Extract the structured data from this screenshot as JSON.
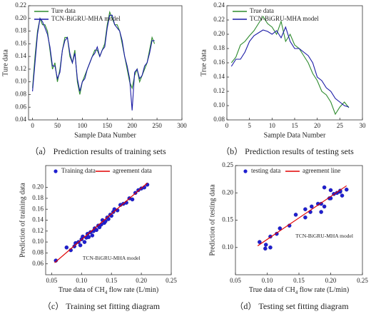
{
  "chart_data": [
    {
      "type": "line",
      "y_label": "Ture data",
      "x_label": "Sample Data Number",
      "caption": "（a） Prediction results of training sets",
      "legend": "upper left",
      "xlim": [
        -8,
        300
      ],
      "xticks": [
        0,
        50,
        100,
        150,
        200,
        250,
        300
      ],
      "ylim": [
        0.04,
        0.22
      ],
      "yticks": [
        0.04,
        0.06,
        0.08,
        {
          "value": 0.1,
          "label": "0.10"
        },
        0.12,
        0.14,
        0.16,
        0.18,
        {
          "value": 0.2,
          "label": "0.20"
        },
        0.22
      ],
      "x": [
        0,
        5,
        10,
        15,
        20,
        25,
        30,
        35,
        40,
        45,
        50,
        55,
        60,
        65,
        70,
        75,
        80,
        85,
        90,
        95,
        100,
        105,
        110,
        115,
        120,
        125,
        130,
        135,
        140,
        145,
        150,
        155,
        160,
        165,
        170,
        175,
        180,
        185,
        190,
        195,
        200,
        205,
        210,
        215,
        220,
        225,
        230,
        235,
        240,
        245
      ],
      "series": [
        {
          "name": "Ture data",
          "color": "#2e8b2e",
          "values": [
            0.09,
            0.14,
            0.18,
            0.2,
            0.19,
            0.19,
            0.18,
            0.15,
            0.12,
            0.13,
            0.1,
            0.12,
            0.15,
            0.17,
            0.17,
            0.14,
            0.13,
            0.15,
            0.1,
            0.08,
            0.1,
            0.11,
            0.12,
            0.13,
            0.14,
            0.15,
            0.15,
            0.14,
            0.15,
            0.16,
            0.19,
            0.21,
            0.2,
            0.19,
            0.19,
            0.18,
            0.16,
            0.14,
            0.12,
            0.1,
            0.09,
            0.11,
            0.12,
            0.1,
            0.11,
            0.12,
            0.13,
            0.15,
            0.17,
            0.16
          ]
        },
        {
          "name": "TCN-BiGRU-MHA model",
          "color": "#1a1aa6",
          "values": [
            0.085,
            0.13,
            0.175,
            0.2,
            0.195,
            0.185,
            0.175,
            0.155,
            0.125,
            0.125,
            0.105,
            0.115,
            0.15,
            0.165,
            0.17,
            0.145,
            0.13,
            0.145,
            0.105,
            0.085,
            0.1,
            0.105,
            0.12,
            0.13,
            0.14,
            0.145,
            0.155,
            0.14,
            0.15,
            0.155,
            0.185,
            0.205,
            0.205,
            0.19,
            0.185,
            0.18,
            0.165,
            0.14,
            0.125,
            0.105,
            0.055,
            0.115,
            0.12,
            0.105,
            0.11,
            0.125,
            0.13,
            0.145,
            0.165,
            0.165
          ]
        }
      ]
    },
    {
      "type": "line",
      "y_label": "True data",
      "x_label": "Sample Data Number",
      "caption": "（b） Prediction results of testing sets",
      "legend": "upper left",
      "xlim": [
        0,
        30
      ],
      "xticks": [
        0,
        5,
        10,
        15,
        20,
        25,
        30
      ],
      "ylim": [
        0.08,
        0.24
      ],
      "yticks": [
        0.08,
        {
          "value": 0.1,
          "label": "0.10"
        },
        0.12,
        0.14,
        0.16,
        0.18,
        {
          "value": 0.2,
          "label": "0.20"
        },
        0.22,
        0.24
      ],
      "x": [
        1,
        2,
        3,
        4,
        5,
        6,
        7,
        8,
        9,
        10,
        11,
        12,
        13,
        14,
        15,
        16,
        17,
        18,
        19,
        20,
        21,
        22,
        23,
        24,
        25,
        26,
        27
      ],
      "series": [
        {
          "name": "True data",
          "color": "#2e8b2e",
          "values": [
            0.16,
            0.168,
            0.185,
            0.19,
            0.198,
            0.205,
            0.215,
            0.225,
            0.215,
            0.21,
            0.2,
            0.218,
            0.19,
            0.2,
            0.185,
            0.18,
            0.17,
            0.16,
            0.145,
            0.135,
            0.12,
            0.115,
            0.105,
            0.088,
            0.098,
            0.105,
            0.097
          ]
        },
        {
          "name": "TCN-BiGRU-MHA model",
          "color": "#1a1aa6",
          "values": [
            0.155,
            0.165,
            0.165,
            0.175,
            0.19,
            0.198,
            0.202,
            0.206,
            0.204,
            0.2,
            0.205,
            0.195,
            0.21,
            0.19,
            0.18,
            0.18,
            0.175,
            0.17,
            0.16,
            0.14,
            0.135,
            0.125,
            0.12,
            0.11,
            0.105,
            0.1,
            0.098
          ]
        }
      ]
    },
    {
      "type": "scatter",
      "y_label": "Prediction of training data",
      "x_label": [
        "True data of CH",
        "4",
        " flow rate (L/min)"
      ],
      "caption": "（c） Training set fitting diagram",
      "annotation": "TCN-BiGRU-MHA model",
      "legend": "upper left",
      "xlim": [
        0.04,
        0.25
      ],
      "xticks": [
        0.05,
        {
          "value": 0.1,
          "label": "0.10"
        },
        0.15,
        {
          "value": 0.2,
          "label": "0.20"
        },
        0.25
      ],
      "ylim": [
        0.04,
        0.24
      ],
      "yticks": [
        0.06,
        0.08,
        {
          "value": 0.1,
          "label": "0.10"
        },
        0.12,
        0.14,
        0.16,
        0.18,
        {
          "value": 0.2,
          "label": "0.20"
        }
      ],
      "series": [
        {
          "name": "Training data",
          "color": "#1f1fd0",
          "x": [
            0.057,
            0.075,
            0.082,
            0.088,
            0.09,
            0.095,
            0.098,
            0.1,
            0.102,
            0.105,
            0.108,
            0.11,
            0.112,
            0.115,
            0.118,
            0.12,
            0.122,
            0.125,
            0.128,
            0.13,
            0.133,
            0.135,
            0.138,
            0.14,
            0.143,
            0.145,
            0.148,
            0.15,
            0.153,
            0.155,
            0.16,
            0.165,
            0.17,
            0.175,
            0.18,
            0.185,
            0.19,
            0.195,
            0.2,
            0.205,
            0.21
          ],
          "values": [
            0.066,
            0.09,
            0.085,
            0.092,
            0.098,
            0.1,
            0.094,
            0.105,
            0.11,
            0.1,
            0.108,
            0.115,
            0.109,
            0.118,
            0.112,
            0.12,
            0.125,
            0.122,
            0.13,
            0.127,
            0.132,
            0.14,
            0.135,
            0.138,
            0.145,
            0.142,
            0.15,
            0.148,
            0.155,
            0.16,
            0.158,
            0.168,
            0.17,
            0.172,
            0.18,
            0.178,
            0.19,
            0.195,
            0.198,
            0.2,
            0.205
          ]
        },
        {
          "name": "agreement data",
          "type": "line",
          "color": "#e00000",
          "x": [
            0.055,
            0.21
          ],
          "values": [
            0.062,
            0.208
          ]
        }
      ]
    },
    {
      "type": "scatter",
      "y_label": "Prediction of testing data",
      "x_label": [
        "True data of CH",
        "4",
        " flow rate (L/min)"
      ],
      "caption": "（d） Testing set fitting diagram",
      "annotation": "TCN-BiGRU-MHA model",
      "legend": "upper left",
      "xlim": [
        0.05,
        0.25
      ],
      "xticks": [
        0.05,
        {
          "value": 0.1,
          "label": "0.10"
        },
        0.15,
        {
          "value": 0.2,
          "label": "0.20"
        },
        0.25
      ],
      "ylim": [
        0.05,
        0.25
      ],
      "yticks": [
        {
          "value": 0.1,
          "label": "0.10"
        },
        0.15,
        {
          "value": 0.2,
          "label": "0.20"
        },
        0.25
      ],
      "series": [
        {
          "name": "testing data",
          "color": "#1f1fd0",
          "x": [
            0.16,
            0.168,
            0.185,
            0.19,
            0.198,
            0.205,
            0.215,
            0.225,
            0.215,
            0.21,
            0.2,
            0.218,
            0.19,
            0.2,
            0.185,
            0.18,
            0.17,
            0.16,
            0.145,
            0.135,
            0.12,
            0.115,
            0.105,
            0.088,
            0.098,
            0.105,
            0.097
          ],
          "values": [
            0.155,
            0.165,
            0.165,
            0.175,
            0.19,
            0.198,
            0.202,
            0.206,
            0.204,
            0.2,
            0.205,
            0.195,
            0.21,
            0.19,
            0.18,
            0.18,
            0.175,
            0.17,
            0.16,
            0.14,
            0.135,
            0.125,
            0.12,
            0.11,
            0.105,
            0.1,
            0.098
          ]
        },
        {
          "name": "agreement line",
          "type": "line",
          "color": "#e00000",
          "x": [
            0.085,
            0.225
          ],
          "values": [
            0.103,
            0.213
          ]
        }
      ]
    }
  ]
}
